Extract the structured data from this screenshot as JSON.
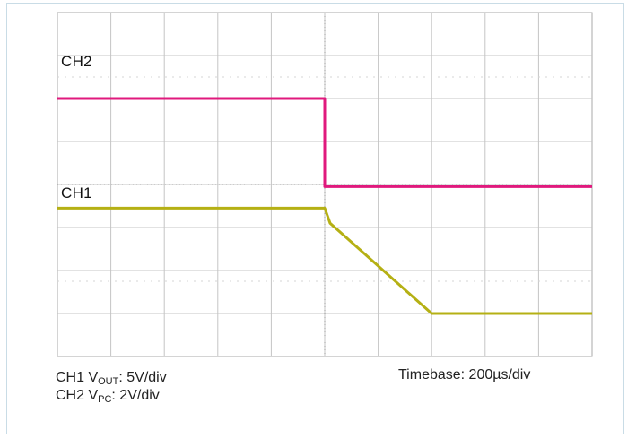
{
  "chart_data": {
    "type": "line",
    "title": "",
    "grid": true,
    "x": {
      "divisions": 10,
      "unit": "div"
    },
    "y": {
      "divisions": 8,
      "unit": "div"
    },
    "series": [
      {
        "name": "CH2",
        "color": "#e0197d",
        "points": [
          [
            0,
            6.0
          ],
          [
            5.0,
            6.0
          ],
          [
            5.0,
            3.95
          ],
          [
            10.0,
            3.95
          ]
        ]
      },
      {
        "name": "CH1",
        "color": "#b5b014",
        "points": [
          [
            0,
            3.45
          ],
          [
            5.0,
            3.45
          ],
          [
            5.1,
            3.1
          ],
          [
            7.0,
            1.0
          ],
          [
            10.0,
            1.0
          ]
        ]
      }
    ],
    "labels": {
      "ch2": "CH2",
      "ch1": "CH1"
    },
    "captions": {
      "ch1_prefix": "CH1 V",
      "ch1_sub": "OUT",
      "ch1_suffix": ": 5V/div",
      "ch2_prefix": "CH2 V",
      "ch2_sub": "PC",
      "ch2_suffix": ": 2V/div",
      "timebase": "Timebase: 200µs/div"
    }
  }
}
